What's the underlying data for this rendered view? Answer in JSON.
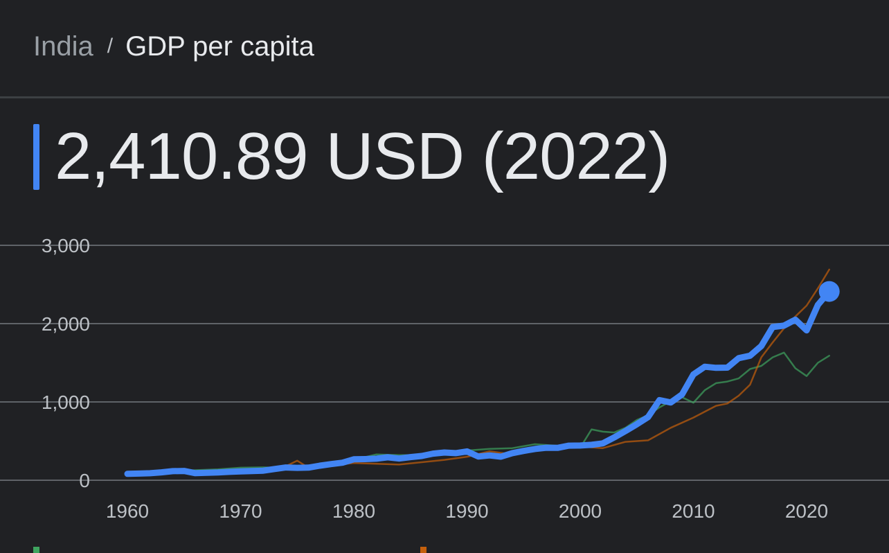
{
  "breadcrumb": {
    "country": "India",
    "separator": "/",
    "metric": "GDP per capita"
  },
  "headline": {
    "value_text": "2,410.89 USD (2022)"
  },
  "colors": {
    "background": "#202124",
    "india": "#4285f4",
    "peer_green": "#3fa45f",
    "peer_orange": "#c5600c",
    "gridline": "#5f6368"
  },
  "chart_data": {
    "type": "line",
    "title": "",
    "xlabel": "",
    "ylabel": "",
    "xlim": [
      1957,
      2026
    ],
    "ylim": [
      0,
      3000
    ],
    "x_ticks": [
      "1960",
      "1970",
      "1980",
      "1990",
      "2000",
      "2010",
      "2020"
    ],
    "y_ticks": [
      "0",
      "1,000",
      "2,000",
      "3,000"
    ],
    "grid": "horizontal",
    "highlight": {
      "series": "India",
      "x": 2022,
      "y": 2410.89
    },
    "series": [
      {
        "name": "India",
        "color": "#4285f4",
        "emphasis": true,
        "x": [
          1960,
          1961,
          1962,
          1963,
          1964,
          1965,
          1966,
          1967,
          1968,
          1969,
          1970,
          1971,
          1972,
          1973,
          1974,
          1975,
          1976,
          1977,
          1978,
          1979,
          1980,
          1981,
          1982,
          1983,
          1984,
          1985,
          1986,
          1987,
          1988,
          1989,
          1990,
          1991,
          1992,
          1993,
          1994,
          1995,
          1996,
          1997,
          1998,
          1999,
          2000,
          2001,
          2002,
          2003,
          2004,
          2005,
          2006,
          2007,
          2008,
          2009,
          2010,
          2011,
          2012,
          2013,
          2014,
          2015,
          2016,
          2017,
          2018,
          2019,
          2020,
          2021,
          2022
        ],
        "y": [
          82,
          85,
          89,
          101,
          116,
          119,
          90,
          96,
          99,
          107,
          112,
          118,
          122,
          143,
          163,
          158,
          161,
          186,
          206,
          224,
          267,
          270,
          275,
          293,
          277,
          296,
          310,
          340,
          354,
          346,
          368,
          303,
          317,
          301,
          346,
          374,
          399,
          415,
          413,
          442,
          443,
          452,
          471,
          546,
          628,
          715,
          807,
          1023,
          993,
          1096,
          1351,
          1450,
          1435,
          1438,
          1559,
          1590,
          1714,
          1957,
          1974,
          2050,
          1913,
          2239,
          2410.89
        ]
      },
      {
        "color": "#3fa45f",
        "emphasis": false,
        "x": [
          1960,
          1962,
          1964,
          1966,
          1968,
          1970,
          1972,
          1974,
          1976,
          1978,
          1980,
          1982,
          1984,
          1986,
          1988,
          1990,
          1992,
          1994,
          1996,
          1998,
          2000,
          2001,
          2002,
          2003,
          2004,
          2005,
          2006,
          2007,
          2008,
          2009,
          2010,
          2011,
          2012,
          2013,
          2014,
          2015,
          2016,
          2017,
          2018,
          2019,
          2020,
          2021,
          2022
        ],
        "y": [
          90,
          100,
          118,
          128,
          140,
          160,
          165,
          155,
          150,
          190,
          260,
          330,
          320,
          320,
          330,
          380,
          400,
          410,
          460,
          440,
          415,
          650,
          620,
          610,
          670,
          770,
          830,
          930,
          1010,
          1060,
          990,
          1150,
          1240,
          1260,
          1300,
          1420,
          1460,
          1570,
          1630,
          1430,
          1330,
          1500,
          1590
        ]
      },
      {
        "color": "#c5600c",
        "emphasis": false,
        "x": [
          1960,
          1962,
          1964,
          1966,
          1968,
          1970,
          1972,
          1974,
          1975,
          1976,
          1978,
          1980,
          1982,
          1984,
          1986,
          1988,
          1990,
          1992,
          1994,
          1996,
          1998,
          2000,
          2002,
          2004,
          2006,
          2008,
          2010,
          2012,
          2013,
          2014,
          2015,
          2016,
          2017,
          2018,
          2019,
          2020,
          2021,
          2022
        ],
        "y": [
          90,
          90,
          90,
          100,
          110,
          110,
          120,
          180,
          250,
          160,
          190,
          220,
          210,
          200,
          230,
          260,
          300,
          370,
          330,
          420,
          420,
          430,
          410,
          490,
          510,
          670,
          800,
          950,
          980,
          1080,
          1220,
          1570,
          1760,
          1940,
          2090,
          2230,
          2450,
          2690
        ]
      }
    ]
  }
}
